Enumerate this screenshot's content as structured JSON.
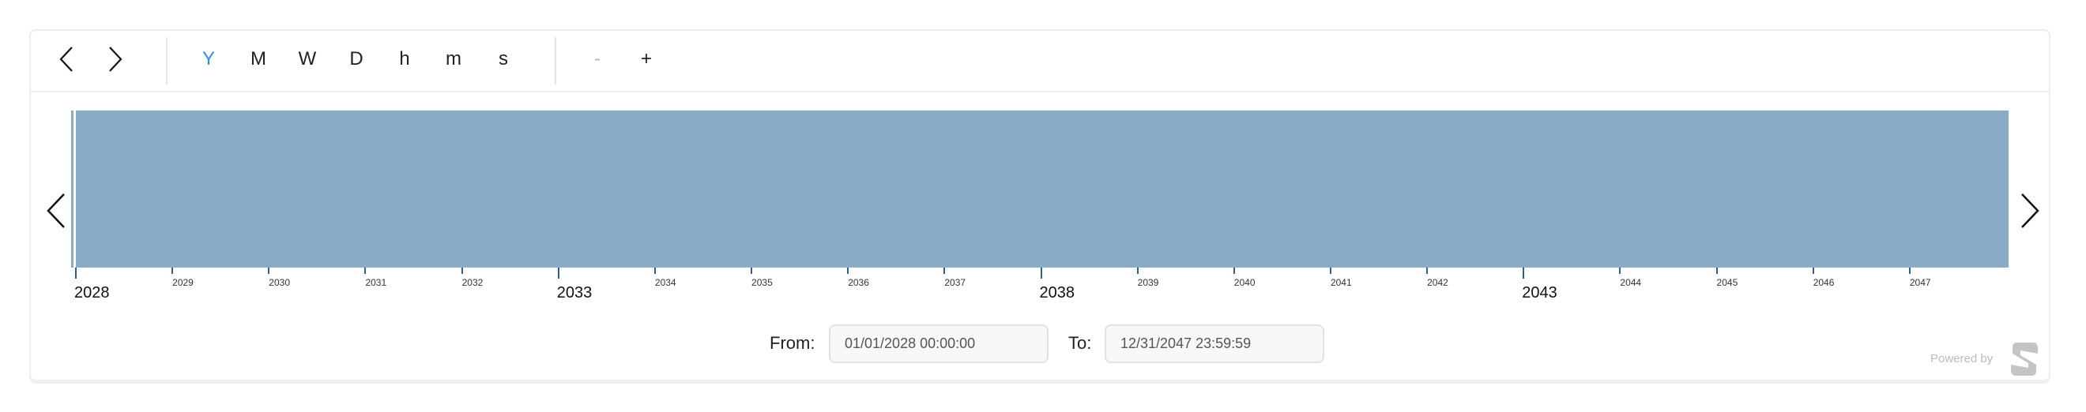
{
  "toolbar": {
    "prev_icon": "chevron-left-icon",
    "next_icon": "chevron-right-icon",
    "scales": [
      {
        "label": "Y",
        "active": true
      },
      {
        "label": "M",
        "active": false
      },
      {
        "label": "W",
        "active": false
      },
      {
        "label": "D",
        "active": false
      },
      {
        "label": "h",
        "active": false
      },
      {
        "label": "m",
        "active": false
      },
      {
        "label": "s",
        "active": false
      }
    ],
    "zoom_out": "-",
    "zoom_in": "+"
  },
  "timeline": {
    "bar_color": "#8aabc7",
    "tick_color": "#2b5f95",
    "active_color": "#2f8ce6",
    "years": [
      2028,
      2029,
      2030,
      2031,
      2032,
      2033,
      2034,
      2035,
      2036,
      2037,
      2038,
      2039,
      2040,
      2041,
      2042,
      2043,
      2044,
      2045,
      2046,
      2047
    ],
    "major_years": [
      2028,
      2033,
      2038,
      2043
    ]
  },
  "range": {
    "from_label": "From:",
    "from_value": "01/01/2028 00:00:00",
    "to_label": "To:",
    "to_value": "12/31/2047 23:59:59"
  },
  "footer": {
    "powered_by": "Powered by",
    "logo_icon": "brand-s-logo-icon"
  }
}
